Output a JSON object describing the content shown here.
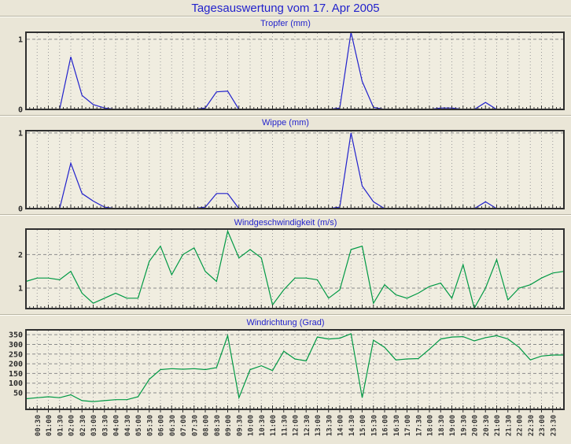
{
  "page": {
    "title": "Tagesauswertung vom 17. Apr 2005",
    "background_color": "#EAE6D7",
    "plot_background_color": "#F0EDE0",
    "title_color": "#2323CC",
    "frame_color": "#2F2F2F",
    "grid_color": "#9A9A9A",
    "axis_label_color": "#2B2B2B"
  },
  "axis": {
    "x_first_hour": 0,
    "x_last_hour": 24,
    "x_step_hours": 0.5,
    "x_labels": [
      "00:30",
      "01:00",
      "01:30",
      "02:00",
      "02:30",
      "03:00",
      "03:30",
      "04:00",
      "04:30",
      "05:00",
      "05:30",
      "06:00",
      "06:30",
      "07:00",
      "07:30",
      "08:00",
      "08:30",
      "09:00",
      "09:30",
      "10:00",
      "10:30",
      "11:00",
      "11:30",
      "12:00",
      "12:30",
      "13:00",
      "13:30",
      "14:00",
      "14:30",
      "15:00",
      "15:30",
      "16:00",
      "16:30",
      "17:00",
      "17:30",
      "18:00",
      "18:30",
      "19:00",
      "19:30",
      "20:00",
      "20:30",
      "21:00",
      "21:30",
      "22:00",
      "22:30",
      "23:00",
      "23:30"
    ]
  },
  "chart_data": [
    {
      "type": "line",
      "title": "Tropfer (mm)",
      "line_color": "#2222CC",
      "ylim": [
        0,
        1.1
      ],
      "yticks": [
        {
          "value": 1,
          "label": "1",
          "dashed": true
        },
        {
          "value": 0,
          "label": "0",
          "dashed": false
        }
      ],
      "values": [
        0,
        0,
        0,
        0,
        0.75,
        0.2,
        0.07,
        0.02,
        0,
        0,
        0,
        0,
        0,
        0,
        0,
        0,
        0.02,
        0.25,
        0.26,
        0,
        0,
        0,
        0,
        0,
        0,
        0,
        0,
        0,
        0.02,
        1.1,
        0.4,
        0.03,
        0,
        0,
        0,
        0,
        0,
        0.02,
        0.02,
        0,
        0,
        0.1,
        0,
        0,
        0,
        0,
        0,
        0,
        0
      ]
    },
    {
      "type": "line",
      "title": "Wippe (mm)",
      "line_color": "#2222CC",
      "ylim": [
        0,
        1.03
      ],
      "yticks": [
        {
          "value": 1,
          "label": "1",
          "dashed": true
        },
        {
          "value": 0,
          "label": "0",
          "dashed": false
        }
      ],
      "values": [
        0,
        0,
        0,
        0,
        0.6,
        0.2,
        0.1,
        0.02,
        0,
        0,
        0,
        0,
        0,
        0,
        0,
        0,
        0.02,
        0.2,
        0.2,
        0,
        0,
        0,
        0,
        0,
        0,
        0,
        0,
        0,
        0.02,
        1.0,
        0.3,
        0.09,
        0,
        0,
        0,
        0,
        0,
        0,
        0,
        0,
        0,
        0.09,
        0,
        0,
        0,
        0,
        0,
        0,
        0
      ]
    },
    {
      "type": "line",
      "title": "Windgeschwindigkeit (m/s)",
      "line_color": "#009944",
      "ylim": [
        0.39,
        2.76
      ],
      "yticks": [
        {
          "value": 2,
          "label": "2",
          "dashed": true
        },
        {
          "value": 1,
          "label": "1",
          "dashed": true
        }
      ],
      "values": [
        1.2,
        1.3,
        1.3,
        1.25,
        1.5,
        0.85,
        0.55,
        0.7,
        0.85,
        0.7,
        0.7,
        1.8,
        2.25,
        1.4,
        2.0,
        2.2,
        1.5,
        1.2,
        2.7,
        1.9,
        2.15,
        1.9,
        0.5,
        0.95,
        1.3,
        1.3,
        1.25,
        0.7,
        0.95,
        2.15,
        2.25,
        0.55,
        1.1,
        0.8,
        0.7,
        0.85,
        1.05,
        1.15,
        0.7,
        1.7,
        0.4,
        1.0,
        1.85,
        0.65,
        1.0,
        1.1,
        1.3,
        1.45,
        1.5
      ]
    },
    {
      "type": "line",
      "title": "Windrichtung (Grad)",
      "line_color": "#009944",
      "ylim": [
        -35,
        375
      ],
      "yticks": [
        {
          "value": 350,
          "label": "350",
          "dashed": true
        },
        {
          "value": 300,
          "label": "300",
          "dashed": true
        },
        {
          "value": 250,
          "label": "250",
          "dashed": true
        },
        {
          "value": 200,
          "label": "200",
          "dashed": true
        },
        {
          "value": 150,
          "label": "150",
          "dashed": true
        },
        {
          "value": 100,
          "label": "100",
          "dashed": true
        },
        {
          "value": 50,
          "label": "50",
          "dashed": true
        }
      ],
      "values": [
        20,
        25,
        30,
        25,
        40,
        10,
        5,
        10,
        15,
        15,
        30,
        120,
        170,
        175,
        172,
        175,
        170,
        180,
        345,
        25,
        170,
        190,
        165,
        265,
        225,
        215,
        338,
        328,
        332,
        355,
        25,
        322,
        285,
        220,
        225,
        227,
        275,
        328,
        338,
        340,
        318,
        335,
        345,
        328,
        285,
        220,
        240,
        245,
        245
      ]
    }
  ]
}
